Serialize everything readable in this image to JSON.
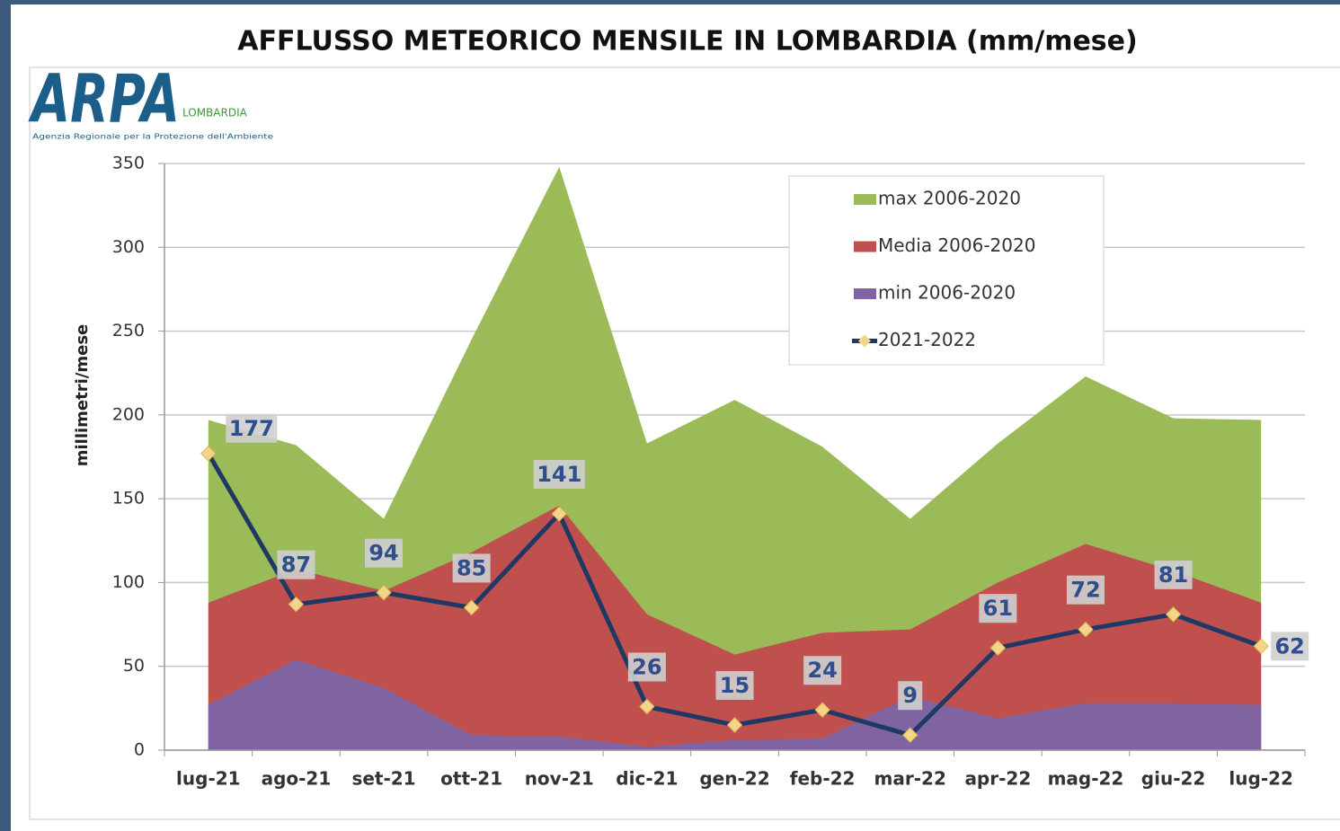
{
  "logo": {
    "name": "ARPA",
    "region": "LOMBARDIA",
    "tagline": "Agenzia Regionale per la Protezione dell'Ambiente"
  },
  "chart_data": {
    "type": "area",
    "title": "AFFLUSSO METEORICO MENSILE IN LOMBARDIA (mm/mese)",
    "y_label": "millimetri/mese",
    "categories": [
      "lug-21",
      "ago-21",
      "set-21",
      "ott-21",
      "nov-21",
      "dic-21",
      "gen-22",
      "feb-22",
      "mar-22",
      "apr-22",
      "mag-22",
      "giu-22",
      "lug-22"
    ],
    "series": [
      {
        "name": "max 2006-2020",
        "color": "#9bbb59",
        "values": [
          197,
          182,
          138,
          245,
          348,
          183,
          209,
          181,
          138,
          183,
          223,
          198,
          197
        ]
      },
      {
        "name": "Media 2006-2020",
        "color": "#c0504d",
        "values": [
          88,
          108,
          95,
          118,
          146,
          81,
          57,
          70,
          72,
          100,
          123,
          107,
          88
        ]
      },
      {
        "name": "min 2006-2020",
        "color": "#8064a2",
        "values": [
          27,
          54,
          37,
          9,
          8,
          2,
          6,
          7,
          32,
          19,
          28,
          28,
          27
        ]
      },
      {
        "name": "2021-2022",
        "type": "line",
        "color": "#1f3864",
        "marker_color": "#f3d58a",
        "data_labels": true,
        "values": [
          177,
          87,
          94,
          85,
          141,
          26,
          15,
          24,
          9,
          61,
          72,
          81,
          62
        ]
      }
    ],
    "ylim": [
      0,
      350
    ],
    "yticks": [
      0,
      50,
      100,
      150,
      200,
      250,
      300,
      350
    ],
    "grid": true,
    "legend": "upper right"
  }
}
